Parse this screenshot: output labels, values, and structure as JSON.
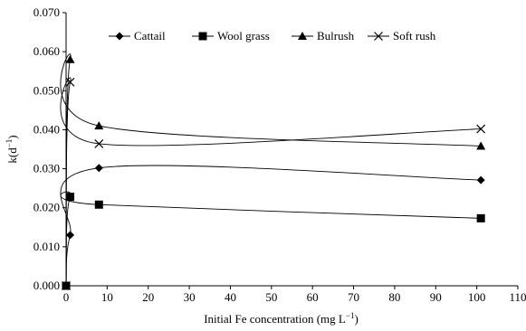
{
  "chart_data": {
    "type": "line",
    "title": "",
    "xlabel": "Initial Fe concentration (mg L",
    "xlabel_sup": "−1",
    "xlabel_tail": ")",
    "ylabel": "k(d",
    "ylabel_sup": "−1",
    "ylabel_tail": ")",
    "xlim": [
      0,
      110
    ],
    "ylim": [
      0,
      0.07
    ],
    "xticks": [
      0,
      10,
      20,
      30,
      40,
      50,
      60,
      70,
      80,
      90,
      100,
      110
    ],
    "yticks": [
      0,
      0.01,
      0.02,
      0.03,
      0.04,
      0.05,
      0.06,
      0.07
    ],
    "ytick_labels": [
      "0.000",
      "0.010",
      "0.020",
      "0.030",
      "0.040",
      "0.050",
      "0.060",
      "0.070"
    ],
    "grid": false,
    "legend_position": "top-center",
    "series": [
      {
        "name": "Cattail",
        "marker": "diamond",
        "x": [
          0,
          1,
          8,
          101
        ],
        "y": [
          0.0,
          0.013,
          0.0302,
          0.0271
        ]
      },
      {
        "name": "Wool grass",
        "marker": "square",
        "x": [
          0,
          1,
          8,
          101
        ],
        "y": [
          0.0,
          0.0228,
          0.0208,
          0.0173
        ]
      },
      {
        "name": "Bulrush",
        "marker": "triangle",
        "x": [
          0,
          1,
          8,
          101
        ],
        "y": [
          0.0,
          0.058,
          0.041,
          0.0358
        ]
      },
      {
        "name": "Soft rush",
        "marker": "x",
        "x": [
          0,
          1,
          8,
          101
        ],
        "y": [
          0.0,
          0.0522,
          0.0364,
          0.0402
        ]
      }
    ]
  }
}
